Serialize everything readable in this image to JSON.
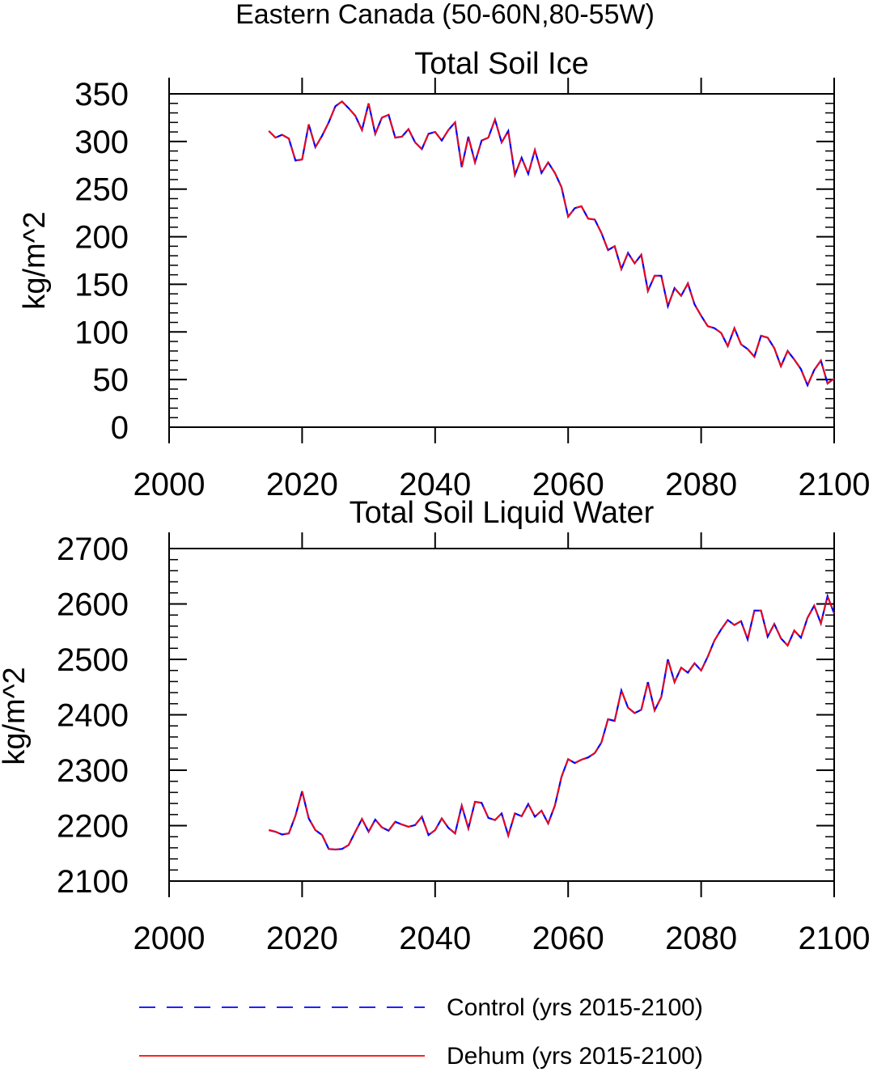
{
  "main_title": "Eastern Canada (50-60N,80-55W)",
  "legend": {
    "control_label": "Control (yrs 2015-2100)",
    "dehum_label": "Dehum (yrs 2015-2100)"
  },
  "colors": {
    "control": "#0000ff",
    "dehum": "#ff0000",
    "axes": "#000000",
    "background": "#ffffff"
  },
  "chart_data": [
    {
      "type": "line",
      "title": "Total Soil Ice",
      "xlabel": "",
      "ylabel": "kg/m^2",
      "xlim": [
        2000,
        2100
      ],
      "ylim": [
        0,
        350
      ],
      "xticks": [
        2000,
        2020,
        2040,
        2060,
        2080,
        2100
      ],
      "yticks": [
        0,
        50,
        100,
        150,
        200,
        250,
        300,
        350
      ],
      "grid": false,
      "x_start": 2015,
      "x_end": 2100,
      "series": [
        {
          "name": "Control (yrs 2015-2100)",
          "style": "dashed",
          "values": [
            311,
            304,
            307,
            303,
            280,
            281,
            318,
            294,
            306,
            320,
            337,
            342,
            335,
            327,
            312,
            340,
            308,
            325,
            328,
            304,
            305,
            313,
            299,
            292,
            308,
            310,
            301,
            312,
            320,
            273,
            305,
            278,
            301,
            304,
            323,
            299,
            311,
            265,
            283,
            266,
            291,
            267,
            278,
            267,
            252,
            221,
            230,
            232,
            219,
            218,
            204,
            186,
            190,
            166,
            183,
            172,
            181,
            143,
            159,
            159,
            127,
            146,
            138,
            151,
            129,
            117,
            106,
            104,
            99,
            85,
            104,
            87,
            82,
            74,
            96,
            94,
            83,
            64,
            80,
            71,
            61,
            44,
            60,
            70,
            46,
            51
          ]
        },
        {
          "name": "Dehum (yrs 2015-2100)",
          "style": "solid",
          "values": [
            311,
            304,
            307,
            303,
            280,
            281,
            318,
            294,
            306,
            320,
            337,
            342,
            335,
            327,
            312,
            340,
            308,
            325,
            328,
            304,
            305,
            313,
            299,
            292,
            308,
            310,
            301,
            312,
            320,
            273,
            305,
            278,
            301,
            304,
            323,
            299,
            311,
            265,
            283,
            266,
            291,
            267,
            278,
            267,
            252,
            221,
            230,
            232,
            219,
            218,
            204,
            186,
            190,
            166,
            183,
            172,
            181,
            143,
            159,
            159,
            127,
            146,
            138,
            151,
            129,
            117,
            106,
            104,
            99,
            85,
            104,
            87,
            82,
            74,
            96,
            94,
            83,
            64,
            80,
            71,
            61,
            44,
            60,
            70,
            46,
            51
          ]
        }
      ]
    },
    {
      "type": "line",
      "title": "Total Soil Liquid Water",
      "xlabel": "",
      "ylabel": "kg/m^2",
      "xlim": [
        2000,
        2100
      ],
      "ylim": [
        2100,
        2700
      ],
      "xticks": [
        2000,
        2020,
        2040,
        2060,
        2080,
        2100
      ],
      "yticks": [
        2100,
        2200,
        2300,
        2400,
        2500,
        2600,
        2700
      ],
      "grid": false,
      "x_start": 2015,
      "x_end": 2100,
      "series": [
        {
          "name": "Control (yrs 2015-2100)",
          "style": "dashed",
          "values": [
            2192,
            2189,
            2184,
            2186,
            2218,
            2262,
            2213,
            2192,
            2183,
            2158,
            2157,
            2158,
            2165,
            2189,
            2212,
            2189,
            2211,
            2197,
            2191,
            2207,
            2202,
            2198,
            2201,
            2216,
            2183,
            2192,
            2213,
            2196,
            2186,
            2236,
            2195,
            2243,
            2241,
            2214,
            2210,
            2222,
            2182,
            2222,
            2217,
            2239,
            2216,
            2227,
            2204,
            2236,
            2288,
            2320,
            2313,
            2319,
            2323,
            2331,
            2350,
            2392,
            2389,
            2444,
            2413,
            2403,
            2409,
            2459,
            2408,
            2432,
            2500,
            2459,
            2485,
            2476,
            2493,
            2480,
            2505,
            2534,
            2554,
            2571,
            2562,
            2569,
            2536,
            2588,
            2588,
            2541,
            2564,
            2538,
            2525,
            2552,
            2539,
            2575,
            2597,
            2565,
            2614,
            2583
          ]
        },
        {
          "name": "Dehum (yrs 2015-2100)",
          "style": "solid",
          "values": [
            2192,
            2189,
            2184,
            2186,
            2218,
            2262,
            2213,
            2192,
            2183,
            2158,
            2157,
            2158,
            2165,
            2189,
            2212,
            2189,
            2211,
            2197,
            2191,
            2207,
            2202,
            2198,
            2201,
            2216,
            2183,
            2192,
            2213,
            2196,
            2186,
            2236,
            2195,
            2243,
            2241,
            2214,
            2210,
            2222,
            2182,
            2222,
            2217,
            2239,
            2216,
            2227,
            2204,
            2236,
            2288,
            2320,
            2313,
            2319,
            2323,
            2331,
            2350,
            2392,
            2389,
            2444,
            2413,
            2403,
            2409,
            2459,
            2408,
            2432,
            2500,
            2459,
            2485,
            2476,
            2493,
            2480,
            2505,
            2534,
            2554,
            2571,
            2562,
            2569,
            2536,
            2588,
            2588,
            2541,
            2564,
            2538,
            2525,
            2552,
            2539,
            2575,
            2597,
            2565,
            2614,
            2583
          ]
        }
      ]
    }
  ]
}
